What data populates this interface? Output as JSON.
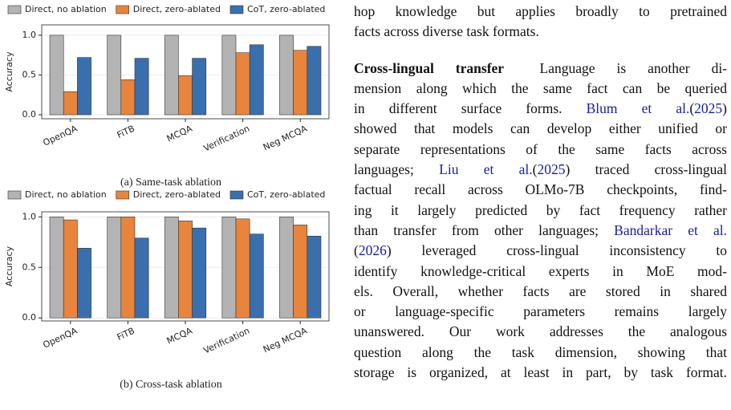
{
  "chart_data": [
    {
      "type": "bar",
      "caption": "(a) Same-task ablation",
      "ylabel": "Accuracy",
      "categories": [
        "OpenQA",
        "FiTB",
        "MCQA",
        "Verification",
        "Neg MCQA"
      ],
      "series": [
        {
          "name": "Direct, no ablation",
          "color": "#b3b3b3",
          "values": [
            1.0,
            1.0,
            1.0,
            1.0,
            1.0
          ]
        },
        {
          "name": "Direct, zero-ablated",
          "color": "#e8843c",
          "values": [
            0.29,
            0.44,
            0.49,
            0.78,
            0.81
          ]
        },
        {
          "name": "CoT, zero-ablated",
          "color": "#3a6fae",
          "values": [
            0.72,
            0.71,
            0.71,
            0.88,
            0.86
          ]
        }
      ],
      "ylim": [
        -0.05,
        1.13
      ],
      "yticks": [
        {
          "value": 0,
          "label": "0.0"
        },
        {
          "value": 0.5,
          "label": "0.5"
        },
        {
          "value": 1,
          "label": "1.0"
        }
      ],
      "grid": true
    },
    {
      "type": "bar",
      "caption": "(b) Cross-task ablation",
      "ylabel": "Accuracy",
      "categories": [
        "OpenQA",
        "FiTB",
        "MCQA",
        "Verification",
        "Neg MCQA"
      ],
      "series": [
        {
          "name": "Direct, no ablation",
          "color": "#b3b3b3",
          "values": [
            1.0,
            1.0,
            1.0,
            1.0,
            1.0
          ]
        },
        {
          "name": "Direct, zero-ablated",
          "color": "#e8843c",
          "values": [
            0.97,
            1.0,
            0.96,
            0.98,
            0.92
          ]
        },
        {
          "name": "CoT, zero-ablated",
          "color": "#3a6fae",
          "values": [
            0.69,
            0.79,
            0.89,
            0.83,
            0.81
          ]
        }
      ],
      "ylim": [
        -0.03,
        1.05
      ],
      "yticks": [
        {
          "value": 0,
          "label": "0.0"
        },
        {
          "value": 0.5,
          "label": "0.5"
        },
        {
          "value": 1,
          "label": "1.0"
        }
      ],
      "grid": true
    }
  ],
  "text": {
    "paragraphs": [
      {
        "lines": [
          [
            {
              "text": "hop knowledge but applies broadly to pretrained"
            }
          ],
          [
            {
              "text": "facts across diverse task formats."
            }
          ]
        ]
      },
      {
        "lines": [
          [
            {
              "text": "Cross-lingual transfer",
              "bold": true
            },
            {
              "text": "Language is another di-"
            }
          ],
          [
            {
              "text": "mension along which the same fact can be queried"
            }
          ],
          [
            {
              "text": "in different surface forms."
            },
            {
              "text": "Blum et al.",
              "link": true
            },
            {
              "text": "("
            },
            {
              "text": "2025",
              "link": true
            },
            {
              "text": ")"
            }
          ],
          [
            {
              "text": "showed that models can develop either unified or"
            }
          ],
          [
            {
              "text": "separate representations of the same facts across"
            }
          ],
          [
            {
              "text": "languages;"
            },
            {
              "text": "Liu et al.",
              "link": true
            },
            {
              "text": "("
            },
            {
              "text": "2025",
              "link": true
            },
            {
              "text": ") traced cross-lingual"
            }
          ],
          [
            {
              "text": "factual recall across OLMo-7B checkpoints, find-"
            }
          ],
          [
            {
              "text": "ing it largely predicted by fact frequency rather"
            }
          ],
          [
            {
              "text": "than transfer from other languages;"
            },
            {
              "text": "Bandarkar et al.",
              "link": true
            }
          ],
          [
            {
              "text": "("
            },
            {
              "text": "2026",
              "link": true
            },
            {
              "text": ") leveraged cross-lingual inconsistency to"
            }
          ],
          [
            {
              "text": "identify knowledge-critical experts in MoE mod-"
            }
          ],
          [
            {
              "text": "els. Overall, whether facts are stored in shared"
            }
          ],
          [
            {
              "text": "or language-specific parameters remains largely"
            }
          ],
          [
            {
              "text": "unanswered. Our work addresses the analogous"
            }
          ],
          [
            {
              "text": "question along the task dimension, showing that"
            }
          ],
          [
            {
              "text": "storage is organized, at least in part, by task format."
            }
          ]
        ]
      }
    ]
  }
}
